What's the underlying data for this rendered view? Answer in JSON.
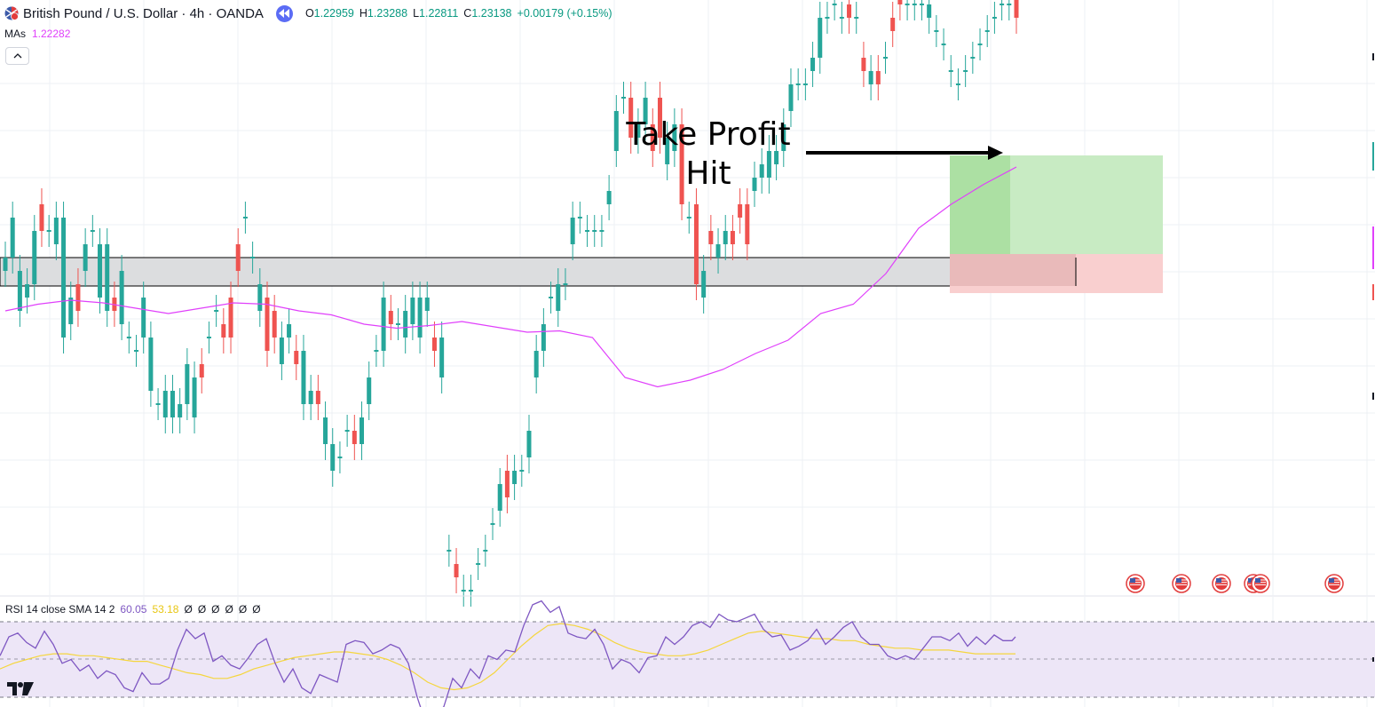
{
  "header": {
    "symbol_title": "British Pound / U.S. Dollar · 4h · OANDA",
    "ohlc": [
      {
        "label": "O",
        "value": "1.22959"
      },
      {
        "label": "H",
        "value": "1.23288"
      },
      {
        "label": "L",
        "value": "1.22811"
      },
      {
        "label": "C",
        "value": "1.23138"
      }
    ],
    "change": "+0.00179 (+0.15%)",
    "ma_label": "MAs",
    "ma_value": "1.22282"
  },
  "annotation": {
    "line1": "Take Profit",
    "line2": "Hit"
  },
  "rsi": {
    "name": "RSI 14 close SMA 14 2",
    "value": "60.05",
    "ma_value": "53.18",
    "empty_values": [
      "Ø",
      "Ø",
      "Ø",
      "Ø",
      "Ø",
      "Ø"
    ]
  },
  "colors": {
    "up": "#26a69a",
    "down": "#ef5350",
    "ma": "#e040fb",
    "rsi_line": "#7e57c2",
    "rsi_ma": "#f5d63d",
    "rsi_band": "#ede6f7",
    "zone": "#dcdddf",
    "profit": "#c8ebc3",
    "loss": "#f9cfcf"
  },
  "icons": [
    "flag-gb-us-icon",
    "rewind-icon",
    "chevron-up-icon",
    "us-flag-event-icon",
    "tradingview-logo"
  ],
  "chart_data": [
    {
      "type": "candlestick",
      "symbol": "GBPUSD",
      "timeframe": "4h",
      "overlay": "moving average",
      "ohlc": [
        [
          0,
          1
        ],
        [
          1,
          4
        ],
        [
          -3,
          0
        ],
        [
          -2,
          -1
        ],
        [
          -1,
          3
        ],
        [
          5,
          3
        ],
        [
          3,
          3
        ],
        [
          2,
          4
        ],
        [
          -5,
          4
        ],
        [
          -4,
          -2
        ],
        [
          -1,
          -3
        ],
        [
          0,
          2
        ],
        [
          3,
          3
        ],
        [
          -2,
          2
        ],
        [
          -3,
          2
        ],
        [
          -2,
          -3
        ],
        [
          -4,
          0
        ],
        [
          -5,
          -5
        ],
        [
          -6,
          -6
        ],
        [
          -5,
          -2
        ],
        [
          -9,
          -5
        ],
        [
          -10,
          -10
        ],
        [
          -11,
          -9
        ],
        [
          -11,
          -9
        ],
        [
          -11,
          -10
        ],
        [
          -10,
          -7
        ],
        [
          -11,
          -8
        ],
        [
          -7,
          -8
        ],
        [
          -5,
          -5
        ],
        [
          -3,
          -3
        ],
        [
          -4,
          -5
        ],
        [
          -2,
          -5
        ],
        [
          2,
          0
        ],
        [
          4,
          4
        ],
        [
          1,
          1
        ],
        [
          -3,
          -1
        ],
        [
          -2,
          -6
        ],
        [
          -3,
          -5
        ],
        [
          -7,
          -5
        ],
        [
          -5,
          -4
        ],
        [
          -6,
          -7
        ],
        [
          -10,
          -6
        ],
        [
          -10,
          -9
        ],
        [
          -9,
          -10
        ],
        [
          -13,
          -11
        ],
        [
          -15,
          -13
        ],
        [
          -14,
          -14
        ],
        [
          -12,
          -12
        ],
        [
          -12,
          -13
        ],
        [
          -13,
          -11
        ],
        [
          -10,
          -8
        ],
        [
          -6,
          -6
        ],
        [
          -6,
          -2
        ],
        [
          -3,
          -4
        ],
        [
          -4,
          -4
        ],
        [
          -5,
          -3
        ],
        [
          -4,
          -2
        ],
        [
          -5,
          -2
        ],
        [
          -3,
          -2
        ],
        [
          -5,
          -6
        ],
        [
          -8,
          -5
        ],
        [
          -21,
          -21
        ],
        [
          -22,
          -23
        ],
        [
          -24,
          -24
        ],
        [
          -24,
          -24
        ],
        [
          -22,
          -22
        ],
        [
          -21,
          -21
        ],
        [
          -19,
          -19
        ],
        [
          -18,
          -16
        ],
        [
          -15,
          -17
        ],
        [
          -16,
          -15
        ],
        [
          -15,
          -15
        ],
        [
          -14,
          -12
        ],
        [
          -8,
          -6
        ],
        [
          -6,
          -4
        ],
        [
          -2,
          -2
        ],
        [
          -3,
          -1
        ],
        [
          -1,
          -1
        ],
        [
          2,
          4
        ],
        [
          4,
          4
        ],
        [
          3,
          3
        ],
        [
          3,
          3
        ],
        [
          3,
          3
        ],
        [
          5,
          6
        ],
        [
          9,
          12
        ],
        [
          13,
          13
        ],
        [
          13,
          10
        ],
        [
          10,
          11
        ],
        [
          11,
          13
        ],
        [
          11,
          9
        ],
        [
          13,
          10
        ],
        [
          8,
          10
        ],
        [
          9,
          11
        ],
        [
          11,
          5
        ],
        [
          4,
          4
        ],
        [
          5,
          -1
        ],
        [
          -2,
          0
        ],
        [
          3,
          2
        ],
        [
          1,
          2
        ],
        [
          2,
          3
        ],
        [
          3,
          2
        ],
        [
          5,
          4
        ],
        [
          5,
          2
        ],
        [
          6,
          7
        ],
        [
          7,
          8
        ],
        [
          7,
          9
        ],
        [
          8,
          9
        ],
        [
          9,
          11
        ],
        [
          12,
          14
        ],
        [
          14,
          14
        ],
        [
          14,
          14
        ],
        [
          15,
          16
        ],
        [
          16,
          19
        ],
        [
          19,
          19
        ],
        [
          20,
          20
        ],
        [
          19,
          19
        ],
        [
          20,
          19
        ],
        [
          19,
          19
        ],
        [
          16,
          15
        ],
        [
          14,
          15
        ],
        [
          15,
          14
        ],
        [
          16,
          16
        ],
        [
          19,
          18
        ],
        [
          21,
          20
        ],
        [
          20,
          20
        ],
        [
          20,
          20
        ],
        [
          20,
          20
        ],
        [
          19,
          20
        ],
        [
          18,
          18
        ],
        [
          17,
          17
        ],
        [
          15,
          15
        ],
        [
          14,
          14
        ],
        [
          15,
          15
        ],
        [
          16,
          16
        ],
        [
          17,
          17
        ],
        [
          18,
          18
        ],
        [
          19,
          19
        ],
        [
          20,
          20
        ],
        [
          20,
          20
        ],
        [
          21,
          19
        ]
      ],
      "ma": [
        1.222,
        1.2225,
        1.2228,
        1.2226,
        1.2222,
        1.2218,
        1.2222,
        1.2226,
        1.2225,
        1.222,
        1.2217,
        1.221,
        1.2207,
        1.2209,
        1.2212,
        1.2208,
        1.2204,
        1.2205,
        1.22,
        1.217,
        1.2163,
        1.2168,
        1.2176,
        1.2188,
        1.2198,
        1.2218,
        1.2225,
        1.2248,
        1.2282,
        1.23,
        1.2315,
        1.2328
      ]
    },
    {
      "type": "line",
      "name": "RSI 14",
      "levels": [
        70,
        50,
        30
      ],
      "ylim": [
        20,
        80
      ],
      "x": [
        0,
        10,
        20,
        30,
        40,
        50,
        60,
        70,
        80,
        90,
        100,
        110,
        120,
        130,
        140,
        150,
        160,
        170,
        180,
        190,
        200,
        210,
        220,
        230,
        240,
        250,
        260,
        270,
        280,
        290,
        300,
        310,
        320,
        330,
        340,
        350,
        360,
        370,
        380,
        390,
        400,
        410,
        420,
        430,
        440,
        450,
        460,
        470,
        480,
        490,
        500,
        510,
        520,
        530,
        540,
        550,
        560,
        570,
        580,
        590,
        600,
        610,
        620,
        630,
        640,
        650,
        660,
        670,
        680,
        690,
        700,
        710,
        720,
        730,
        740,
        750,
        760,
        770,
        780,
        790,
        800,
        810,
        820,
        830,
        840,
        850,
        860,
        870,
        880,
        890,
        900,
        910,
        920,
        930,
        940,
        950,
        960,
        970,
        980,
        990,
        1000,
        1010,
        1020,
        1030,
        1040,
        1050,
        1060,
        1070,
        1080,
        1090,
        1100,
        1110,
        1120,
        1130,
        1140,
        1144
      ],
      "values": [
        52,
        62,
        64,
        59,
        56,
        65,
        58,
        48,
        50,
        44,
        47,
        40,
        44,
        42,
        35,
        33,
        43,
        37,
        37,
        40,
        55,
        66,
        61,
        64,
        49,
        52,
        47,
        45,
        51,
        58,
        61,
        48,
        38,
        45,
        35,
        32,
        42,
        40,
        38,
        58,
        60,
        59,
        53,
        55,
        58,
        56,
        48,
        30,
        16,
        20,
        25,
        40,
        35,
        45,
        40,
        52,
        50,
        55,
        54,
        68,
        79,
        81,
        75,
        78,
        64,
        62,
        61,
        66,
        58,
        45,
        50,
        48,
        43,
        51,
        52,
        62,
        58,
        62,
        68,
        70,
        67,
        74,
        71,
        70,
        72,
        74,
        66,
        62,
        63,
        55,
        57,
        60,
        66,
        58,
        62,
        67,
        70,
        62,
        58,
        58,
        52,
        50,
        52,
        50,
        56,
        62,
        62,
        60,
        64,
        57,
        62,
        58,
        63,
        60,
        60,
        62
      ],
      "ma_values": [
        45,
        48,
        50,
        52,
        53,
        53,
        52,
        52,
        51,
        50,
        49,
        49,
        47,
        45,
        43,
        42,
        40,
        40,
        42,
        45,
        47,
        49,
        51,
        52,
        53,
        54,
        54,
        53,
        52,
        50,
        47,
        43,
        38,
        35,
        34,
        35,
        38,
        43,
        50,
        57,
        63,
        68,
        69,
        68,
        66,
        63,
        59,
        56,
        54,
        53,
        52,
        52,
        53,
        55,
        58,
        61,
        64,
        65,
        64,
        63,
        62,
        61,
        61,
        60,
        60,
        58,
        57,
        56,
        56,
        55,
        55,
        55,
        54,
        53,
        53,
        53,
        53
      ]
    }
  ]
}
